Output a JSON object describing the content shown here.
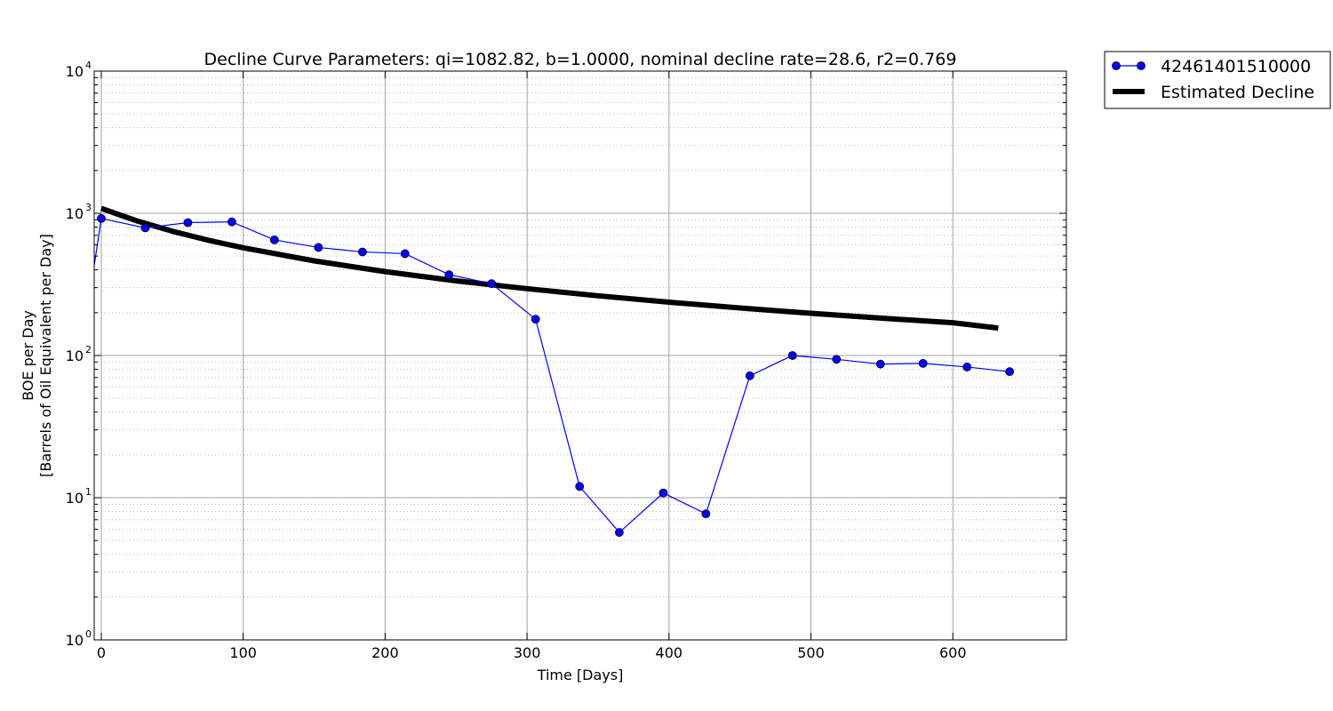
{
  "chart_data": {
    "type": "line",
    "title": "Decline Curve Parameters: qi=1082.82, b=1.0000, nominal decline rate=28.6, r2=0.769",
    "xlabel": "Time [Days]",
    "ylabel_line1": "BOE per Day",
    "ylabel_line2": "[Barrels of Oil Equivalent per Day]",
    "xlim": [
      -5,
      680
    ],
    "ylim": [
      1,
      10000
    ],
    "yscale": "log",
    "grid": true,
    "legend_position": "outside-top-right",
    "x_ticks": [
      0,
      100,
      200,
      300,
      400,
      500,
      600
    ],
    "x_tick_labels": [
      "0",
      "100",
      "200",
      "300",
      "400",
      "500",
      "600"
    ],
    "y_ticks": [
      1,
      10,
      100,
      1000,
      10000
    ],
    "y_tick_labels": [
      {
        "base": "10",
        "exp": "0"
      },
      {
        "base": "10",
        "exp": "1"
      },
      {
        "base": "10",
        "exp": "2"
      },
      {
        "base": "10",
        "exp": "3"
      },
      {
        "base": "10",
        "exp": "4"
      }
    ],
    "series": [
      {
        "name": "42461401510000",
        "style": "line-markers",
        "color": "#0000ff",
        "x": [
          -10,
          0,
          31,
          61,
          92,
          122,
          153,
          184,
          214,
          245,
          275,
          306,
          337,
          365,
          396,
          426,
          457,
          487,
          518,
          549,
          579,
          610,
          640
        ],
        "y": [
          200,
          920,
          790,
          860,
          870,
          650,
          575,
          535,
          520,
          370,
          320,
          180,
          12,
          5.7,
          10.8,
          7.7,
          72,
          100,
          94,
          87,
          88,
          83,
          77
        ]
      },
      {
        "name": "Estimated Decline",
        "style": "line",
        "color": "#000000",
        "qi": 1082.82,
        "b": 1.0,
        "x_range": [
          0,
          632
        ],
        "x": [
          0,
          25,
          50,
          75,
          100,
          150,
          200,
          250,
          300,
          350,
          400,
          450,
          500,
          550,
          600,
          632
        ],
        "y": [
          1082.82,
          885,
          748,
          648,
          572,
          463,
          389,
          335,
          295,
          263,
          237,
          216,
          198,
          183,
          170,
          156
        ]
      }
    ]
  }
}
